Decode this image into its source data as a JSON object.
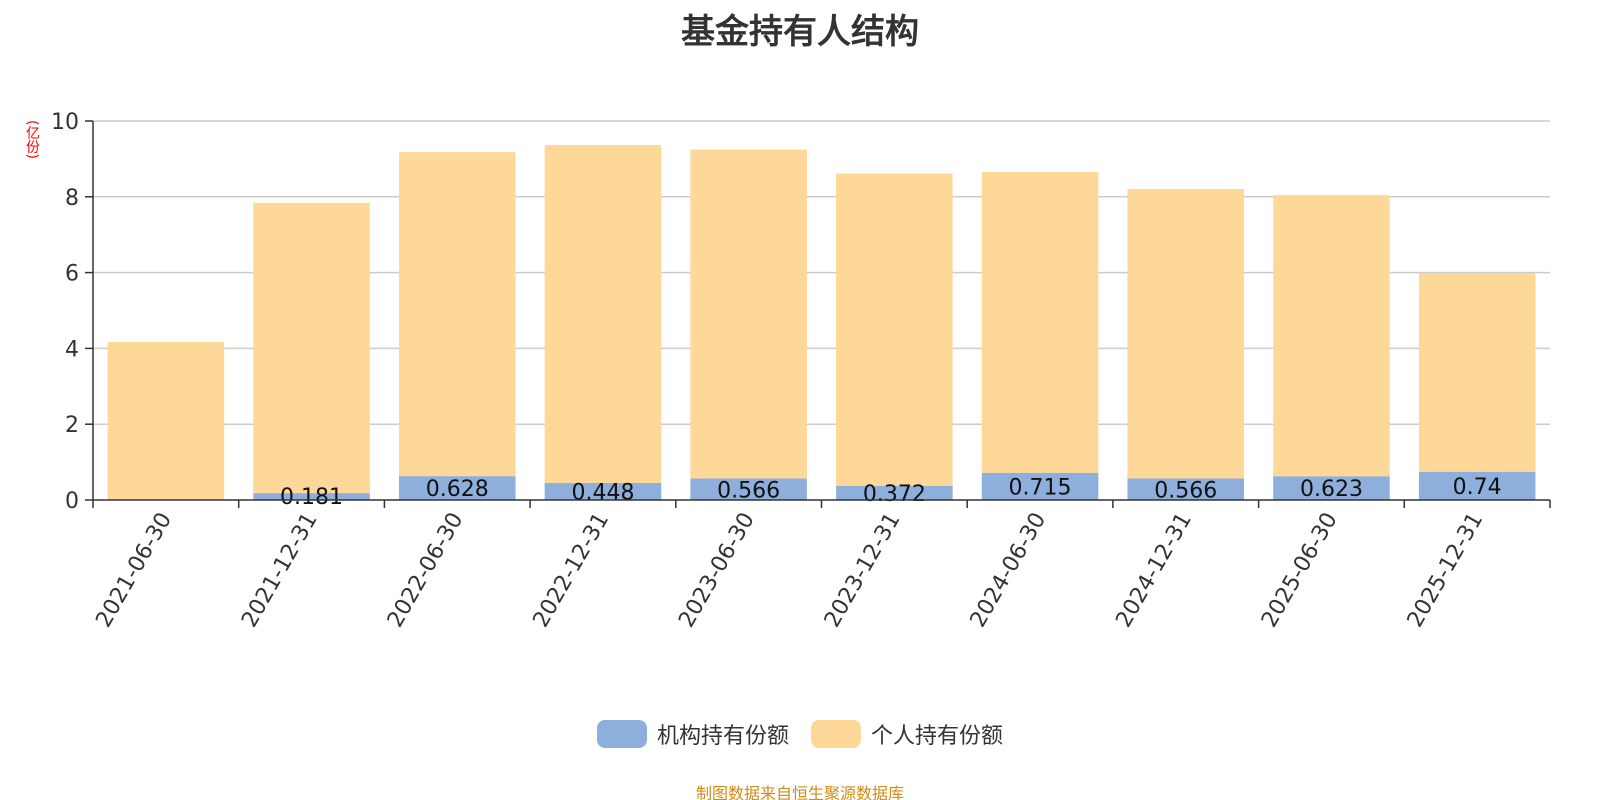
{
  "chart_data": {
    "type": "bar",
    "stacked": true,
    "title": "基金持有人结构",
    "y_unit": "(亿份)",
    "ylim": [
      0,
      10
    ],
    "yticks": [
      "0",
      "2",
      "4",
      "6",
      "8",
      "10"
    ],
    "grid": true,
    "legend_position": "bottom",
    "categories": [
      "2021-06-30",
      "2021-12-31",
      "2022-06-30",
      "2022-12-31",
      "2023-06-30",
      "2023-12-31",
      "2024-06-30",
      "2024-12-31",
      "2025-06-30",
      "2025-12-31"
    ],
    "series": [
      {
        "name": "机构持有份额",
        "color": "#8eaedc",
        "values": [
          0,
          0.181,
          0.628,
          0.448,
          0.566,
          0.372,
          0.715,
          0.566,
          0.623,
          0.74
        ],
        "labels": [
          "",
          "0.181",
          "0.628",
          "0.448",
          "0.566",
          "0.372",
          "0.715",
          "0.566",
          "0.623",
          "0.74"
        ]
      },
      {
        "name": "个人持有份额",
        "color": "#fdd898",
        "values": [
          4.17,
          7.66,
          8.55,
          8.92,
          8.68,
          8.24,
          7.94,
          7.64,
          7.42,
          5.25
        ]
      }
    ]
  },
  "footer": {
    "source": "制图数据来自恒生聚源数据库"
  }
}
